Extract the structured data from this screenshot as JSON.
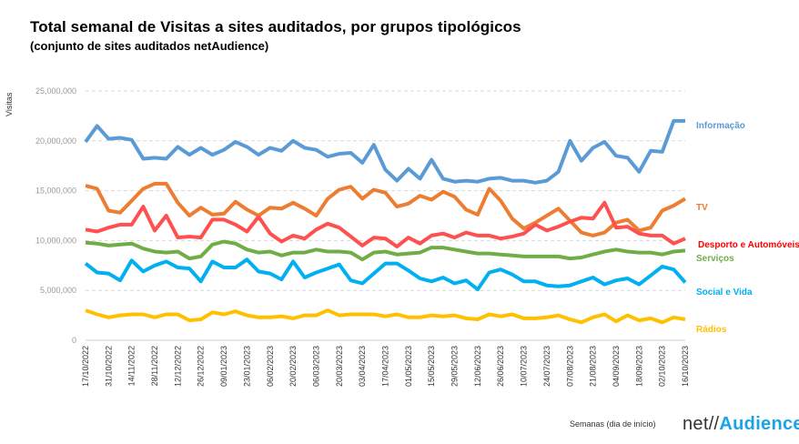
{
  "chart_data": {
    "type": "line",
    "title": "Total semanal de Visitas a sites auditados, por grupos tipológicos",
    "subtitle": "(conjunto de sites auditados netAudience)",
    "xlabel": "Semanas  (dia de início)",
    "ylabel": "Visitas",
    "ylim": [
      0,
      25000000
    ],
    "yticks": [
      0,
      5000000,
      10000000,
      15000000,
      20000000,
      25000000
    ],
    "ytick_labels": [
      "0",
      "5,000,000",
      "10,000,000",
      "15,000,000",
      "20,000,000",
      "25,000,000"
    ],
    "grid": "horizontal dashed",
    "legend": "right (labels at line ends)",
    "x": [
      "17/10/2022",
      "24/10/2022",
      "31/10/2022",
      "07/11/2022",
      "14/11/2022",
      "21/11/2022",
      "28/11/2022",
      "05/12/2022",
      "12/12/2022",
      "19/12/2022",
      "26/12/2022",
      "02/01/2023",
      "09/01/2023",
      "16/01/2023",
      "23/01/2023",
      "30/01/2023",
      "06/02/2023",
      "13/02/2023",
      "20/02/2023",
      "27/02/2023",
      "06/03/2023",
      "13/03/2023",
      "20/03/2023",
      "27/03/2023",
      "03/04/2023",
      "10/04/2023",
      "17/04/2023",
      "24/04/2023",
      "01/05/2023",
      "08/05/2023",
      "15/05/2023",
      "22/05/2023",
      "29/05/2023",
      "05/06/2023",
      "12/06/2023",
      "19/06/2023",
      "26/06/2023",
      "03/07/2023",
      "10/07/2023",
      "17/07/2023",
      "24/07/2023",
      "31/07/2023",
      "07/08/2023",
      "14/08/2023",
      "21/08/2023",
      "28/08/2023",
      "04/09/2023",
      "11/09/2023",
      "18/09/2023",
      "25/09/2023",
      "02/10/2023",
      "09/10/2023",
      "16/10/2023"
    ],
    "xtick_labels": [
      "17/10/2022",
      "31/10/2022",
      "14/11/2022",
      "28/11/2022",
      "12/12/2022",
      "26/12/2022",
      "09/01/2023",
      "23/01/2023",
      "06/02/2023",
      "20/02/2023",
      "06/03/2023",
      "20/03/2023",
      "03/04/2023",
      "17/04/2023",
      "01/05/2023",
      "15/05/2023",
      "29/05/2023",
      "12/06/2023",
      "26/06/2023",
      "10/07/2023",
      "24/07/2023",
      "07/08/2023",
      "21/08/2023",
      "04/09/2023",
      "18/09/2023",
      "02/10/2023",
      "16/10/2023"
    ],
    "series": [
      {
        "name": "Informação",
        "color": "#5B9BD5",
        "label_color": "#5B9BD5",
        "values": [
          19.9,
          21.5,
          20.2,
          20.3,
          20.1,
          18.2,
          18.3,
          18.2,
          19.4,
          18.6,
          19.3,
          18.6,
          19.1,
          19.9,
          19.4,
          18.6,
          19.3,
          19.0,
          20.0,
          19.3,
          19.1,
          18.4,
          18.7,
          18.8,
          17.8,
          19.6,
          17.1,
          16.0,
          17.2,
          16.2,
          18.1,
          16.2,
          15.9,
          16.0,
          15.9,
          16.2,
          16.3,
          16.0,
          16.0,
          15.8,
          16.0,
          16.9,
          20.0,
          18.0,
          19.3,
          19.9,
          18.5,
          18.3,
          16.9,
          19.0,
          18.9,
          22.0,
          22.0
        ]
      },
      {
        "name": "TV",
        "color": "#ED7D31",
        "label_color": "#ED7D31",
        "values": [
          15.5,
          15.2,
          13.0,
          12.8,
          14.0,
          15.2,
          15.7,
          15.7,
          13.8,
          12.5,
          13.3,
          12.6,
          12.7,
          13.9,
          13.1,
          12.5,
          13.3,
          13.2,
          13.8,
          13.2,
          12.5,
          14.2,
          15.1,
          15.4,
          14.2,
          15.1,
          14.8,
          13.4,
          13.7,
          14.5,
          14.1,
          14.9,
          14.4,
          13.1,
          12.6,
          15.2,
          14.0,
          12.2,
          11.2,
          11.8,
          12.5,
          13.2,
          12.0,
          10.8,
          10.5,
          10.8,
          11.8,
          12.1,
          11.0,
          11.3,
          13.0,
          13.5,
          14.2
        ]
      },
      {
        "name": "Desporto e Automóveis",
        "color": "#FF5050",
        "label_color": "#FF0000",
        "values": [
          11.1,
          10.9,
          11.3,
          11.6,
          11.6,
          13.4,
          11.0,
          12.5,
          10.3,
          10.4,
          10.3,
          12.1,
          12.1,
          11.6,
          10.9,
          12.4,
          10.7,
          9.9,
          10.5,
          10.2,
          11.1,
          11.7,
          11.3,
          10.4,
          9.5,
          10.3,
          10.2,
          9.4,
          10.3,
          9.7,
          10.5,
          10.7,
          10.3,
          10.8,
          10.5,
          10.5,
          10.2,
          10.4,
          10.7,
          11.6,
          11.0,
          11.4,
          11.9,
          12.3,
          12.2,
          13.8,
          11.3,
          11.4,
          10.7,
          10.5,
          10.5,
          9.7,
          10.2
        ]
      },
      {
        "name": "Serviços",
        "color": "#70AD47",
        "label_color": "#70AD47",
        "values": [
          9.8,
          9.7,
          9.5,
          9.6,
          9.7,
          9.2,
          8.9,
          8.8,
          8.9,
          8.2,
          8.4,
          9.6,
          9.9,
          9.7,
          9.1,
          8.8,
          8.9,
          8.5,
          8.8,
          8.8,
          9.1,
          8.9,
          8.9,
          8.8,
          8.1,
          8.8,
          8.9,
          8.6,
          8.7,
          8.8,
          9.3,
          9.3,
          9.1,
          8.9,
          8.7,
          8.7,
          8.6,
          8.5,
          8.4,
          8.4,
          8.4,
          8.4,
          8.2,
          8.3,
          8.6,
          8.9,
          9.1,
          8.9,
          8.8,
          8.8,
          8.6,
          8.9,
          9.0
        ]
      },
      {
        "name": "Social e Vida",
        "color": "#00B0F0",
        "label_color": "#00B0F0",
        "values": [
          7.7,
          6.8,
          6.7,
          6.0,
          8.0,
          6.9,
          7.5,
          7.9,
          7.3,
          7.2,
          5.9,
          7.9,
          7.3,
          7.3,
          8.1,
          6.9,
          6.7,
          6.1,
          7.9,
          6.3,
          6.8,
          7.2,
          7.6,
          6.0,
          5.7,
          6.7,
          7.7,
          7.7,
          7.0,
          6.2,
          5.9,
          6.3,
          5.7,
          6.0,
          5.1,
          6.8,
          7.1,
          6.6,
          5.9,
          5.9,
          5.5,
          5.4,
          5.5,
          5.9,
          6.3,
          5.6,
          6.0,
          6.2,
          5.6,
          6.5,
          7.4,
          7.1,
          5.8
        ]
      },
      {
        "name": "Rádios",
        "color": "#FFC000",
        "label_color": "#FFC000",
        "values": [
          3.0,
          2.6,
          2.3,
          2.5,
          2.6,
          2.6,
          2.3,
          2.6,
          2.6,
          2.0,
          2.1,
          2.8,
          2.6,
          2.9,
          2.5,
          2.3,
          2.3,
          2.4,
          2.2,
          2.5,
          2.5,
          3.0,
          2.5,
          2.6,
          2.6,
          2.6,
          2.4,
          2.6,
          2.3,
          2.3,
          2.5,
          2.4,
          2.5,
          2.2,
          2.1,
          2.6,
          2.4,
          2.6,
          2.2,
          2.2,
          2.3,
          2.5,
          2.1,
          1.8,
          2.3,
          2.6,
          1.9,
          2.5,
          2.0,
          2.2,
          1.8,
          2.3,
          2.1
        ]
      }
    ],
    "value_unit_multiplier": 1000000
  },
  "logo": {
    "part1": "net//",
    "part2": "Audience"
  }
}
